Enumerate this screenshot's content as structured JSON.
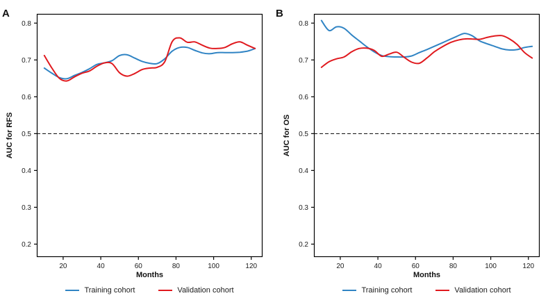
{
  "figure_colors": {
    "training": "#3084c4",
    "validation": "#e0191e",
    "reference": "#000000",
    "frame": "#000000"
  },
  "chart_data": [
    {
      "type": "line",
      "panel_label": "A",
      "title": "",
      "xlabel": "Months",
      "ylabel": "AUC for RFS",
      "xlim": [
        6,
        126
      ],
      "ylim": [
        0.165,
        0.825
      ],
      "x_ticks": [
        20,
        40,
        60,
        80,
        100,
        120
      ],
      "y_ticks": [
        0.2,
        0.3,
        0.4,
        0.5,
        0.6,
        0.7,
        0.8
      ],
      "grid": false,
      "legend_position": "bottom",
      "reference_line": {
        "y": 0.5,
        "style": "dashed",
        "color": "#000000"
      },
      "series": [
        {
          "name": "Training cohort",
          "color": "#3084c4",
          "x": [
            10,
            14,
            18,
            22,
            26,
            30,
            34,
            38,
            42,
            46,
            50,
            54,
            58,
            62,
            66,
            70,
            74,
            78,
            82,
            86,
            90,
            94,
            98,
            102,
            106,
            110,
            114,
            118,
            122
          ],
          "y": [
            0.678,
            0.664,
            0.652,
            0.649,
            0.658,
            0.666,
            0.676,
            0.688,
            0.692,
            0.698,
            0.712,
            0.714,
            0.705,
            0.696,
            0.691,
            0.69,
            0.703,
            0.724,
            0.734,
            0.734,
            0.726,
            0.719,
            0.717,
            0.72,
            0.72,
            0.72,
            0.721,
            0.724,
            0.731
          ]
        },
        {
          "name": "Validation cohort",
          "color": "#e0191e",
          "x": [
            10,
            14,
            18,
            22,
            26,
            30,
            34,
            38,
            42,
            46,
            50,
            54,
            58,
            62,
            66,
            70,
            74,
            78,
            82,
            86,
            90,
            94,
            98,
            102,
            106,
            110,
            114,
            118,
            122
          ],
          "y": [
            0.712,
            0.678,
            0.65,
            0.643,
            0.654,
            0.664,
            0.67,
            0.683,
            0.692,
            0.69,
            0.665,
            0.656,
            0.663,
            0.674,
            0.678,
            0.68,
            0.695,
            0.75,
            0.76,
            0.748,
            0.749,
            0.74,
            0.732,
            0.731,
            0.734,
            0.744,
            0.749,
            0.74,
            0.731
          ]
        }
      ]
    },
    {
      "type": "line",
      "panel_label": "B",
      "title": "",
      "xlabel": "Months",
      "ylabel": "AUC for OS",
      "xlim": [
        6,
        126
      ],
      "ylim": [
        0.165,
        0.825
      ],
      "x_ticks": [
        20,
        40,
        60,
        80,
        100,
        120
      ],
      "y_ticks": [
        0.2,
        0.3,
        0.4,
        0.5,
        0.6,
        0.7,
        0.8
      ],
      "grid": false,
      "legend_position": "bottom",
      "reference_line": {
        "y": 0.5,
        "style": "dashed",
        "color": "#000000"
      },
      "series": [
        {
          "name": "Training cohort",
          "color": "#3084c4",
          "x": [
            10,
            14,
            18,
            22,
            26,
            30,
            34,
            38,
            42,
            46,
            50,
            54,
            58,
            62,
            66,
            70,
            74,
            78,
            82,
            86,
            90,
            94,
            98,
            102,
            106,
            110,
            114,
            118,
            122
          ],
          "y": [
            0.807,
            0.78,
            0.79,
            0.786,
            0.768,
            0.752,
            0.736,
            0.722,
            0.712,
            0.709,
            0.708,
            0.708,
            0.711,
            0.72,
            0.728,
            0.737,
            0.746,
            0.755,
            0.764,
            0.772,
            0.766,
            0.752,
            0.744,
            0.737,
            0.73,
            0.727,
            0.728,
            0.734,
            0.737
          ]
        },
        {
          "name": "Validation cohort",
          "color": "#e0191e",
          "x": [
            10,
            14,
            18,
            22,
            26,
            30,
            34,
            38,
            42,
            46,
            50,
            54,
            58,
            62,
            66,
            70,
            74,
            78,
            82,
            86,
            90,
            94,
            98,
            102,
            106,
            110,
            114,
            118,
            122
          ],
          "y": [
            0.68,
            0.695,
            0.703,
            0.708,
            0.722,
            0.731,
            0.732,
            0.726,
            0.71,
            0.716,
            0.721,
            0.707,
            0.694,
            0.691,
            0.705,
            0.722,
            0.735,
            0.746,
            0.753,
            0.757,
            0.757,
            0.756,
            0.761,
            0.765,
            0.766,
            0.757,
            0.742,
            0.72,
            0.705
          ]
        }
      ]
    }
  ]
}
